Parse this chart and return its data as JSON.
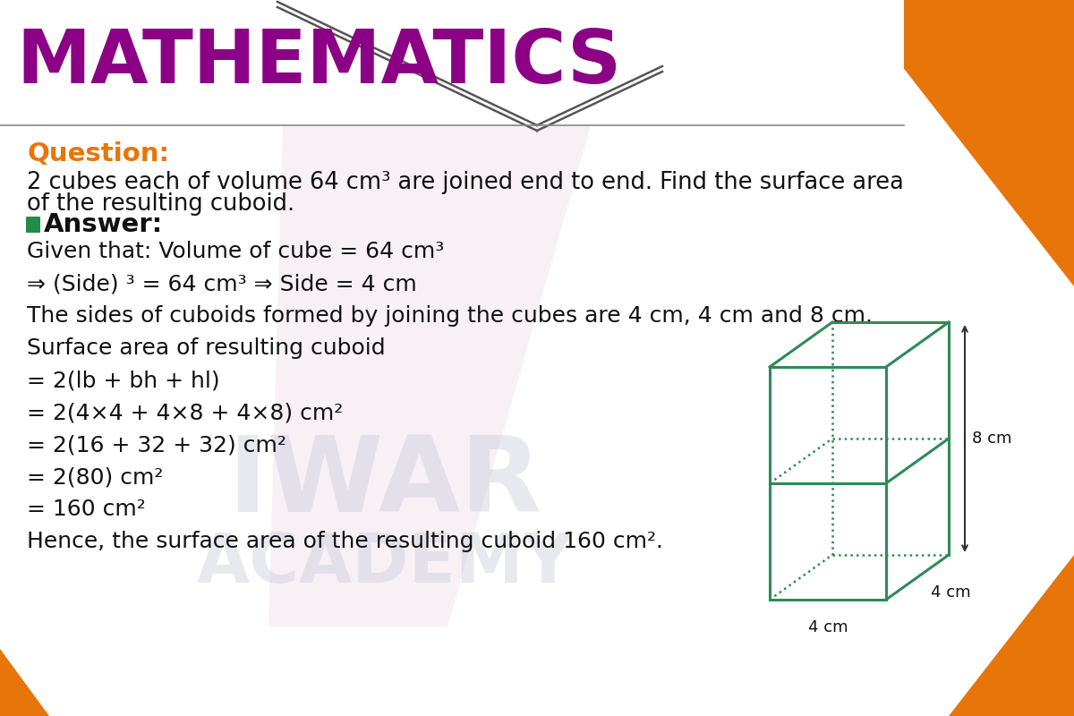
{
  "title": "MATHEMATICS",
  "title_color": "#8B0085",
  "bg_color": "#FFFFFF",
  "orange_color": "#E8750A",
  "question_label": "Question:",
  "question_color": "#E8750A",
  "question_text_line1": "2 cubes each of volume 64 cm³ are joined end to end. Find the surface area",
  "question_text_line2": "of the resulting cuboid.",
  "answer_label": "Answer:",
  "body_lines": [
    "Given that: Volume of cube = 64 cm³",
    "⇒ (Side) ³ = 64 cm³ ⇒ Side = 4 cm",
    "The sides of cuboids formed by joining the cubes are 4 cm, 4 cm and 8 cm.",
    "Surface area of resulting cuboid",
    "= 2(lb + bh + hl)",
    "= 2(4×4 + 4×8 + 4×8) cm²",
    "= 2(16 + 32 + 32) cm²",
    "= 2(80) cm²",
    "= 160 cm²",
    "Hence, the surface area of the resulting cuboid 160 cm²."
  ],
  "cube_color": "#2E8B57",
  "watermark_lines": [
    "IWAR",
    "ACADEMY"
  ],
  "watermark_color": "#CCCCDD"
}
